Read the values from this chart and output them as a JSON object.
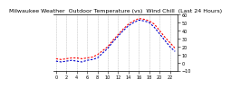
{
  "title": "Milwaukee Weather  Outdoor Temperature (vs)  Wind Chill  (Last 24 Hours)",
  "temp_color": "#ff0000",
  "chill_color": "#0000cc",
  "background_color": "#ffffff",
  "grid_color": "#aaaaaa",
  "ylim": [
    -10,
    60
  ],
  "yticks": [
    -10,
    0,
    10,
    20,
    30,
    40,
    50,
    60
  ],
  "hours": 24,
  "temp_values": [
    5,
    4,
    5,
    6,
    6,
    5,
    6,
    7,
    10,
    15,
    20,
    28,
    35,
    42,
    48,
    52,
    55,
    54,
    52,
    48,
    40,
    32,
    25,
    18
  ],
  "chill_values": [
    2,
    1,
    2,
    3,
    2,
    1,
    3,
    4,
    6,
    12,
    18,
    26,
    33,
    40,
    46,
    50,
    53,
    52,
    50,
    44,
    36,
    28,
    20,
    14
  ],
  "title_fontsize": 4.5,
  "tick_fontsize": 3.5,
  "xtick_positions": [
    0,
    2,
    4,
    6,
    8,
    10,
    12,
    14,
    16,
    18,
    20,
    22
  ],
  "xtick_labels": [
    "0",
    "2",
    "4",
    "6",
    "8",
    "10",
    "12",
    "14",
    "16",
    "18",
    "20",
    "22"
  ]
}
